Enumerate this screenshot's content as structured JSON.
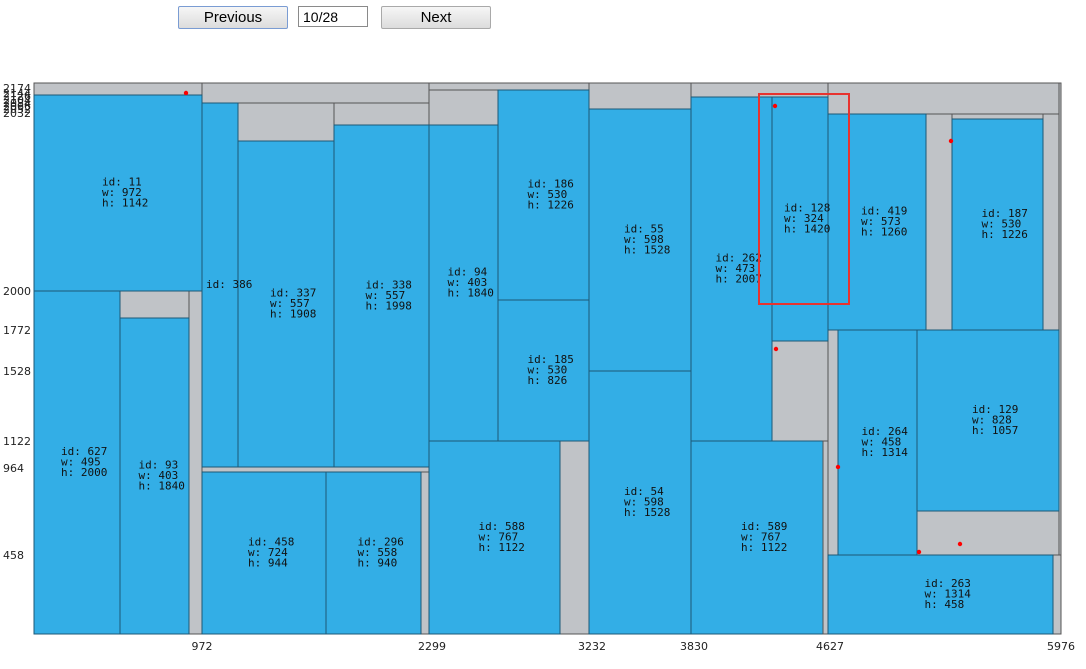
{
  "controls": {
    "prev_label": "Previous",
    "next_label": "Next",
    "page_value": "10/28"
  },
  "sheet": {
    "width": 5976,
    "height": 2174
  },
  "x_ticks": [
    "972",
    "2299",
    "3232",
    "3830",
    "4627",
    "5976"
  ],
  "y_ticks": [
    "2000",
    "1772",
    "1528",
    "1122",
    "964",
    "458"
  ],
  "y_ticks_top": [
    "2174",
    "2144",
    "2126",
    "2104",
    "2084",
    "2066",
    "2052",
    "2032"
  ],
  "pieces": [
    {
      "id": "11",
      "w": 972,
      "h": 1142,
      "x": 0,
      "y": 2000
    },
    {
      "id": "627",
      "w": 495,
      "h": 2000,
      "x": 0,
      "y": 0
    },
    {
      "id": "93",
      "w": 403,
      "h": 1840,
      "x": 495,
      "y": 0
    },
    {
      "id": "386",
      "w": 210,
      "h": 1430,
      "x": 972,
      "y": 660,
      "label": "id: 386"
    },
    {
      "id": "337",
      "w": 557,
      "h": 1908,
      "x": 1182,
      "y": 660
    },
    {
      "id": "338",
      "w": 557,
      "h": 1998,
      "x": 1739,
      "y": 660
    },
    {
      "id": "458",
      "w": 724,
      "h": 944,
      "x": 972,
      "y": 0
    },
    {
      "id": "296",
      "w": 558,
      "h": 940,
      "x": 1696,
      "y": 0
    },
    {
      "id": "94",
      "w": 403,
      "h": 1840,
      "x": 2299,
      "y": 1122
    },
    {
      "id": "186",
      "w": 530,
      "h": 1226,
      "x": 2702,
      "y": 1300
    },
    {
      "id": "185",
      "w": 530,
      "h": 826,
      "x": 2702,
      "y": 474
    },
    {
      "id": "588",
      "w": 767,
      "h": 1122,
      "x": 2299,
      "y": 0
    },
    {
      "id": "55",
      "w": 598,
      "h": 1528,
      "x": 3232,
      "y": 1122
    },
    {
      "id": "54",
      "w": 598,
      "h": 1528,
      "x": 3232,
      "y": 0
    },
    {
      "id": "262",
      "w": 473,
      "h": 2007,
      "x": 3830,
      "y": 1122,
      "label_clip": true
    },
    {
      "id": "128",
      "w": 324,
      "h": 1420,
      "x": 4303,
      "y": 1122
    },
    {
      "id": "589",
      "w": 767,
      "h": 1122,
      "x": 3830,
      "y": 0
    },
    {
      "id": "419",
      "w": 573,
      "h": 1260,
      "x": 4627,
      "y": 1772
    },
    {
      "id": "187",
      "w": 530,
      "h": 1226,
      "x": 5357,
      "y": 1772
    },
    {
      "id": "264",
      "w": 458,
      "h": 1314,
      "x": 4685,
      "y": 458
    },
    {
      "id": "129",
      "w": 828,
      "h": 1057,
      "x": 5143,
      "y": 707
    },
    {
      "id": "263",
      "w": 1314,
      "h": 458,
      "x": 4627,
      "y": 0
    }
  ]
}
